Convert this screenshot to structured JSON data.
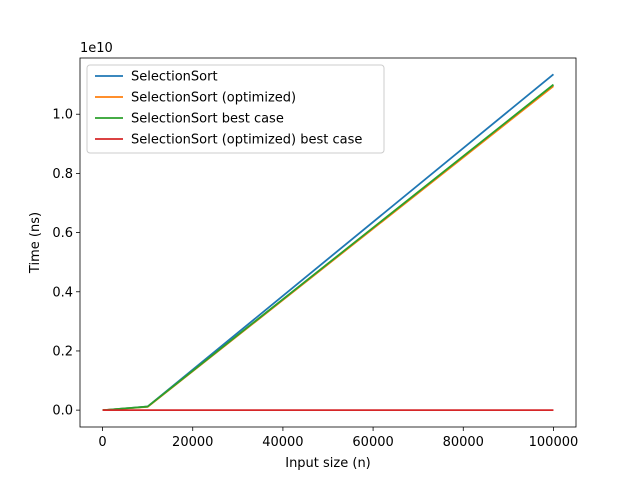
{
  "chart_data": {
    "type": "line",
    "xlabel": "Input size (n)",
    "ylabel": "Time (ns)",
    "y_offset_label": "1e10",
    "xlim": [
      -5000,
      105000
    ],
    "ylim": [
      -0.057,
      1.19
    ],
    "x_ticks": [
      0,
      20000,
      40000,
      60000,
      80000,
      100000
    ],
    "x_tick_labels": [
      "0",
      "20000",
      "40000",
      "60000",
      "80000",
      "100000"
    ],
    "y_ticks": [
      0.0,
      0.2,
      0.4,
      0.6,
      0.8,
      1.0
    ],
    "y_tick_labels": [
      "0.0",
      "0.2",
      "0.4",
      "0.6",
      "0.8",
      "1.0"
    ],
    "grid": false,
    "legend_position": "top-left",
    "x": [
      10,
      100,
      1000,
      10000,
      100000
    ],
    "series": [
      {
        "name": "SelectionSort",
        "color": "#1f77b4",
        "values": [
          0.0,
          0.0,
          0.001,
          0.012,
          1.135
        ]
      },
      {
        "name": "SelectionSort (optimized)",
        "color": "#ff7f0e",
        "values": [
          0.0,
          0.0,
          0.001,
          0.011,
          1.095
        ]
      },
      {
        "name": "SelectionSort best case",
        "color": "#2ca02c",
        "values": [
          0.0,
          0.0,
          0.001,
          0.012,
          1.1
        ]
      },
      {
        "name": "SelectionSort (optimized) best case",
        "color": "#d62728",
        "values": [
          0.0,
          0.0,
          0.0,
          0.0,
          0.0
        ]
      }
    ]
  }
}
